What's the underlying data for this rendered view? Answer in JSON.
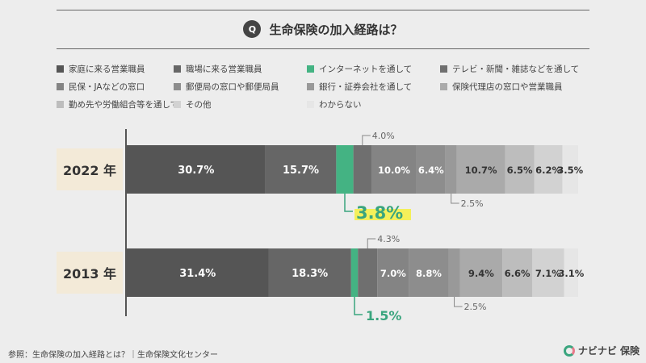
{
  "title": {
    "badge": "Q",
    "text": "生命保険の加入経路は？"
  },
  "legend": [
    {
      "label": "家庭に来る営業職員",
      "color": "#555555"
    },
    {
      "label": "職場に来る営業職員",
      "color": "#666666"
    },
    {
      "label": "インターネットを通して",
      "color": "#44b383"
    },
    {
      "label": "テレビ・新聞・雑誌などを通して",
      "color": "#6f6f6f"
    },
    {
      "label": "民保・JAなどの窓口",
      "color": "#848484"
    },
    {
      "label": "郵便局の窓口や郵便局員",
      "color": "#8d8d8d"
    },
    {
      "label": "銀行・証券会社を通して",
      "color": "#999999"
    },
    {
      "label": "保険代理店の窓口や営業職員",
      "color": "#aaaaaa"
    },
    {
      "label": "勤め先や労働組合等を通して",
      "color": "#bdbdbd"
    },
    {
      "label": "その他",
      "color": "#d2d2d2"
    },
    {
      "label": "わからない",
      "color": "#e6e6e6"
    }
  ],
  "chart_data": {
    "type": "bar",
    "orientation": "horizontal-stacked-100",
    "title": "生命保険の加入経路は？",
    "categories": [
      "2022 年",
      "2013 年"
    ],
    "series": [
      {
        "name": "家庭に来る営業職員",
        "values": [
          30.7,
          31.4
        ],
        "labels": [
          "30.7%",
          "31.4%"
        ]
      },
      {
        "name": "職場に来る営業職員",
        "values": [
          15.7,
          18.3
        ],
        "labels": [
          "15.7%",
          "18.3%"
        ]
      },
      {
        "name": "インターネットを通して",
        "values": [
          3.8,
          1.5
        ],
        "labels": [
          "3.8%",
          "1.5%"
        ]
      },
      {
        "name": "テレビ・新聞・雑誌などを通して",
        "values": [
          4.0,
          4.3
        ],
        "labels": [
          "4.0%",
          "4.3%"
        ]
      },
      {
        "name": "民保・JAなどの窓口",
        "values": [
          10.0,
          7.0
        ],
        "labels": [
          "10.0%",
          "7.0%"
        ]
      },
      {
        "name": "郵便局の窓口や郵便局員",
        "values": [
          6.4,
          8.8
        ],
        "labels": [
          "6.4%",
          "8.8%"
        ]
      },
      {
        "name": "銀行・証券会社を通して",
        "values": [
          2.5,
          2.5
        ],
        "labels": [
          "2.5%",
          "2.5%"
        ]
      },
      {
        "name": "保険代理店の窓口や営業職員",
        "values": [
          10.7,
          9.4
        ],
        "labels": [
          "10.7%",
          "9.4%"
        ]
      },
      {
        "name": "勤め先や労働組合等を通して",
        "values": [
          6.5,
          6.6
        ],
        "labels": [
          "6.5%",
          "6.6%"
        ]
      },
      {
        "name": "その他",
        "values": [
          6.2,
          7.1
        ],
        "labels": [
          "6.2%",
          "7.1%"
        ]
      },
      {
        "name": "わからない",
        "values": [
          3.5,
          3.1
        ],
        "labels": [
          "3.5%",
          "3.1%"
        ]
      }
    ],
    "xlim": [
      0,
      100
    ]
  },
  "footer": {
    "source": "参照：生命保険の加入経路とは？｜生命保険文化センター",
    "brand": "ナビナビ 保険"
  }
}
